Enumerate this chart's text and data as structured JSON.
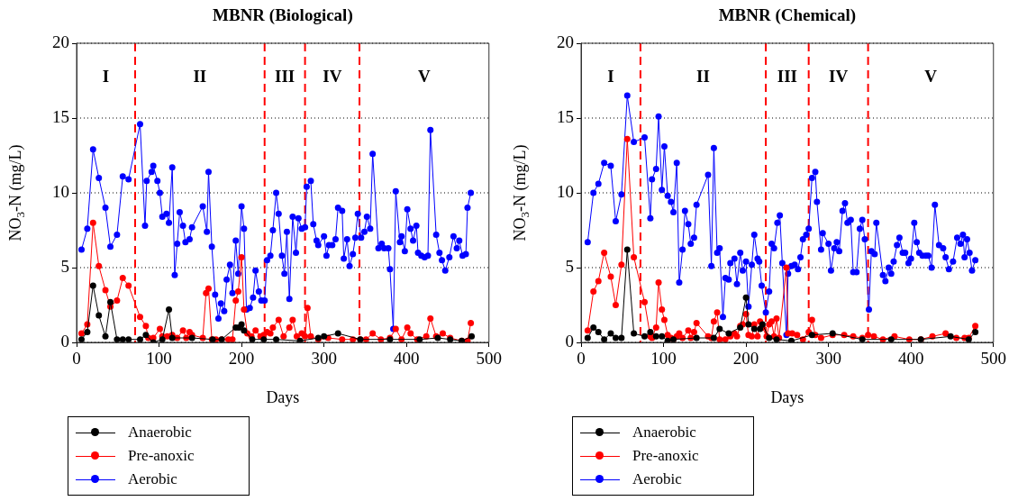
{
  "chart_data": [
    {
      "type": "line",
      "title": "MBNR (Biological)",
      "xlabel": "Days",
      "ylabel": "NO$_{3}$-N (mg/L)",
      "xlim": [
        0,
        500
      ],
      "ylim": [
        0,
        20
      ],
      "xticks": [
        0,
        100,
        200,
        300,
        400,
        500
      ],
      "yticks": [
        0,
        5,
        10,
        15,
        20
      ],
      "grid": "y",
      "legend": "bottom",
      "marker": "circle",
      "series": [
        {
          "name": "Anaerobic",
          "color": "#000000",
          "x": [
            6,
            13,
            20,
            27,
            35,
            41,
            49,
            56,
            63,
            77,
            84,
            93,
            104,
            112,
            116,
            140,
            165,
            176,
            193,
            197,
            200,
            203,
            213,
            227,
            242,
            271,
            293,
            300,
            317,
            344,
            380,
            416,
            438,
            453,
            467,
            479
          ],
          "values": [
            0.2,
            0.7,
            3.8,
            1.8,
            0.4,
            2.7,
            0.2,
            0.2,
            0.2,
            0.2,
            0.5,
            0.0,
            0.2,
            2.2,
            0.3,
            0.3,
            0.2,
            0.2,
            1.0,
            1.0,
            1.2,
            0.8,
            0.2,
            0.2,
            0.2,
            0.1,
            0.3,
            0.4,
            0.6,
            0.2,
            0.2,
            0.2,
            0.3,
            0.2,
            0.1,
            0.4
          ]
        },
        {
          "name": "Pre-anoxic",
          "color": "#ff0000",
          "x": [
            6,
            13,
            20,
            27,
            35,
            41,
            49,
            56,
            63,
            77,
            84,
            87,
            93,
            101,
            104,
            110,
            116,
            122,
            129,
            133,
            137,
            140,
            153,
            157,
            160,
            164,
            169,
            176,
            184,
            189,
            193,
            196,
            200,
            203,
            207,
            212,
            217,
            223,
            227,
            231,
            235,
            238,
            245,
            251,
            258,
            262,
            267,
            273,
            277,
            280,
            284,
            293,
            305,
            322,
            335,
            344,
            351,
            359,
            369,
            380,
            387,
            394,
            401,
            405,
            413,
            424,
            429,
            436,
            444,
            453,
            467,
            474,
            478
          ],
          "values": [
            0.6,
            1.2,
            8.0,
            5.1,
            3.5,
            2.4,
            2.8,
            4.3,
            3.8,
            1.7,
            1.1,
            0.3,
            0.3,
            0.9,
            0.4,
            0.4,
            0.5,
            0.3,
            0.8,
            0.3,
            0.7,
            0.5,
            0.3,
            3.3,
            3.6,
            0.2,
            0.2,
            0.2,
            0.2,
            0.2,
            2.8,
            3.4,
            5.7,
            2.2,
            0.6,
            0.4,
            0.8,
            0.4,
            0.5,
            0.7,
            0.6,
            1.0,
            1.5,
            0.4,
            1.0,
            1.5,
            0.4,
            0.6,
            0.4,
            2.3,
            0.4,
            0.2,
            0.3,
            0.2,
            0.2,
            0.2,
            0.2,
            0.6,
            0.2,
            0.3,
            0.9,
            0.2,
            1.0,
            0.6,
            0.2,
            0.4,
            1.6,
            0.4,
            0.6,
            0.3,
            0.1,
            0.1,
            1.3
          ]
        },
        {
          "name": "Aerobic",
          "color": "#0000ff",
          "x": [
            6,
            13,
            20,
            27,
            35,
            41,
            49,
            56,
            63,
            77,
            83,
            85,
            91,
            93,
            98,
            101,
            104,
            109,
            112,
            116,
            119,
            122,
            125,
            129,
            132,
            137,
            140,
            153,
            158,
            160,
            164,
            168,
            172,
            175,
            179,
            182,
            186,
            189,
            193,
            196,
            200,
            203,
            206,
            210,
            214,
            217,
            221,
            224,
            228,
            231,
            235,
            238,
            242,
            245,
            249,
            252,
            255,
            258,
            262,
            266,
            269,
            273,
            277,
            279,
            284,
            287,
            291,
            293,
            300,
            303,
            306,
            310,
            314,
            317,
            322,
            324,
            328,
            331,
            335,
            338,
            341,
            345,
            349,
            352,
            356,
            359,
            366,
            370,
            373,
            378,
            380,
            384,
            387,
            392,
            394,
            398,
            401,
            405,
            408,
            412,
            414,
            418,
            422,
            426,
            429,
            436,
            440,
            443,
            447,
            452,
            457,
            461,
            464,
            468,
            472,
            474,
            478
          ],
          "values": [
            6.2,
            7.6,
            12.9,
            11.0,
            9.0,
            6.4,
            7.2,
            11.1,
            10.9,
            14.6,
            7.8,
            10.8,
            11.4,
            11.8,
            10.8,
            10.0,
            8.4,
            8.6,
            8.0,
            11.7,
            4.5,
            6.6,
            8.7,
            7.8,
            6.7,
            6.9,
            7.7,
            9.1,
            7.4,
            11.4,
            6.4,
            3.2,
            1.6,
            2.6,
            2.1,
            4.2,
            5.2,
            3.3,
            6.8,
            4.6,
            9.1,
            7.6,
            2.2,
            2.3,
            3.0,
            4.8,
            3.4,
            2.8,
            2.8,
            5.5,
            5.8,
            7.5,
            10.0,
            8.6,
            5.8,
            4.6,
            7.4,
            2.9,
            8.4,
            6.0,
            8.3,
            7.6,
            7.7,
            10.4,
            10.8,
            7.9,
            6.8,
            6.5,
            7.1,
            5.8,
            6.5,
            6.5,
            6.9,
            9.0,
            8.8,
            5.6,
            6.9,
            5.1,
            5.9,
            7.0,
            8.6,
            7.0,
            7.4,
            8.4,
            7.6,
            12.6,
            6.3,
            6.6,
            6.3,
            6.3,
            4.9,
            0.9,
            10.1,
            6.7,
            7.1,
            6.1,
            8.9,
            7.6,
            6.8,
            7.8,
            6.0,
            5.8,
            5.7,
            5.8,
            14.2,
            7.2,
            6.0,
            5.5,
            4.8,
            5.7,
            7.1,
            6.3,
            6.8,
            5.8,
            5.9,
            9.0,
            10.0
          ]
        }
      ],
      "ref_lines": [
        {
          "axis": "x",
          "value": 71,
          "color": "#ff0000",
          "line_style": "dashed"
        },
        {
          "axis": "x",
          "value": 228,
          "color": "#ff0000",
          "line_style": "dashed"
        },
        {
          "axis": "x",
          "value": 277,
          "color": "#ff0000",
          "line_style": "dashed"
        },
        {
          "axis": "x",
          "value": 343,
          "color": "#ff0000",
          "line_style": "dashed"
        }
      ],
      "annotations": [
        "I",
        "II",
        "III",
        "IV",
        "V"
      ]
    },
    {
      "type": "line",
      "title": "MBNR (Chemical)",
      "xlabel": "Days",
      "ylabel": "NO$_{3}$-N (mg/L)",
      "xlim": [
        0,
        500
      ],
      "ylim": [
        0,
        20
      ],
      "xticks": [
        0,
        100,
        200,
        300,
        400,
        500
      ],
      "yticks": [
        0,
        5,
        10,
        15,
        20
      ],
      "grid": "y",
      "legend": "bottom",
      "marker": "circle",
      "series": [
        {
          "name": "Anaerobic",
          "color": "#000000",
          "x": [
            8,
            15,
            21,
            28,
            36,
            42,
            49,
            56,
            64,
            77,
            84,
            91,
            98,
            105,
            112,
            140,
            161,
            168,
            179,
            193,
            200,
            203,
            210,
            217,
            220,
            228,
            237,
            255,
            280,
            305,
            341,
            376,
            412,
            448,
            470,
            478
          ],
          "values": [
            0.3,
            1.0,
            0.7,
            0.2,
            0.6,
            0.3,
            0.3,
            6.2,
            0.6,
            0.4,
            0.7,
            0.4,
            0.4,
            0.1,
            0.2,
            0.3,
            0.3,
            0.9,
            0.6,
            1.0,
            3.0,
            1.2,
            0.9,
            0.9,
            1.2,
            0.3,
            0.2,
            0.1,
            0.5,
            0.6,
            0.2,
            0.2,
            0.2,
            0.4,
            0.2,
            0.7
          ]
        },
        {
          "name": "Pre-anoxic",
          "color": "#ff0000",
          "x": [
            8,
            15,
            21,
            28,
            36,
            42,
            49,
            56,
            64,
            77,
            84,
            86,
            91,
            94,
            98,
            101,
            105,
            109,
            112,
            116,
            119,
            123,
            130,
            133,
            137,
            140,
            154,
            158,
            161,
            165,
            168,
            175,
            181,
            186,
            189,
            193,
            196,
            200,
            203,
            207,
            210,
            214,
            217,
            220,
            225,
            228,
            231,
            234,
            237,
            240,
            249,
            251,
            256,
            262,
            269,
            276,
            280,
            284,
            291,
            305,
            319,
            330,
            341,
            348,
            355,
            366,
            380,
            398,
            412,
            426,
            442,
            455,
            465,
            470,
            478
          ],
          "values": [
            0.8,
            3.4,
            4.1,
            6.0,
            4.4,
            2.5,
            5.2,
            13.6,
            5.7,
            2.7,
            0.4,
            0.3,
            1.0,
            4.0,
            2.2,
            1.5,
            0.5,
            0.3,
            0.2,
            0.4,
            0.6,
            0.3,
            0.8,
            0.3,
            0.7,
            1.3,
            0.4,
            0.3,
            1.4,
            2.0,
            0.2,
            0.2,
            0.4,
            0.6,
            0.4,
            1.1,
            1.2,
            1.9,
            0.5,
            0.4,
            1.2,
            0.4,
            1.4,
            1.0,
            0.4,
            1.2,
            1.4,
            0.4,
            1.6,
            0.3,
            5.0,
            0.6,
            0.6,
            0.5,
            0.2,
            0.7,
            1.5,
            0.5,
            0.3,
            0.5,
            0.5,
            0.4,
            0.3,
            0.5,
            0.4,
            0.2,
            0.4,
            0.2,
            0.2,
            0.4,
            0.6,
            0.3,
            0.3,
            0.3,
            1.1
          ]
        },
        {
          "name": "Aerobic",
          "color": "#0000ff",
          "x": [
            8,
            15,
            21,
            28,
            36,
            42,
            49,
            56,
            64,
            77,
            84,
            86,
            91,
            94,
            98,
            101,
            105,
            109,
            112,
            116,
            119,
            123,
            126,
            130,
            133,
            137,
            140,
            154,
            158,
            161,
            165,
            168,
            172,
            175,
            179,
            181,
            186,
            189,
            193,
            196,
            200,
            203,
            207,
            210,
            214,
            216,
            219,
            224,
            228,
            231,
            234,
            238,
            241,
            244,
            249,
            251,
            255,
            259,
            263,
            266,
            269,
            273,
            276,
            280,
            284,
            286,
            291,
            293,
            300,
            303,
            307,
            310,
            313,
            317,
            320,
            323,
            327,
            330,
            334,
            338,
            341,
            344,
            349,
            352,
            356,
            358,
            366,
            369,
            373,
            376,
            379,
            383,
            386,
            390,
            393,
            397,
            400,
            404,
            407,
            410,
            414,
            418,
            421,
            425,
            429,
            434,
            439,
            442,
            446,
            451,
            456,
            460,
            463,
            465,
            468,
            471,
            474,
            478
          ],
          "values": [
            6.7,
            10.0,
            10.6,
            12.0,
            11.8,
            8.1,
            9.9,
            16.5,
            13.4,
            13.7,
            8.3,
            10.9,
            11.6,
            15.1,
            10.2,
            13.1,
            9.8,
            9.4,
            8.7,
            12.0,
            4.0,
            6.2,
            8.8,
            7.9,
            6.6,
            7.0,
            9.2,
            11.2,
            5.1,
            13.0,
            6.0,
            6.3,
            1.7,
            4.3,
            4.2,
            5.3,
            5.6,
            3.9,
            6.0,
            4.8,
            5.4,
            2.4,
            5.2,
            7.2,
            5.6,
            5.4,
            3.8,
            2.0,
            3.4,
            6.6,
            6.3,
            8.0,
            8.5,
            5.3,
            0.5,
            4.6,
            5.1,
            5.2,
            4.9,
            5.7,
            6.9,
            7.2,
            7.6,
            11.0,
            11.4,
            9.4,
            6.2,
            7.3,
            6.6,
            4.8,
            6.3,
            6.7,
            6.1,
            8.8,
            9.3,
            8.0,
            8.2,
            4.7,
            4.7,
            7.6,
            8.2,
            6.9,
            2.2,
            6.1,
            5.9,
            8.0,
            4.5,
            4.1,
            5.0,
            4.6,
            5.4,
            6.5,
            7.0,
            6.0,
            6.0,
            5.3,
            5.6,
            8.0,
            6.7,
            6.0,
            5.8,
            5.8,
            5.8,
            5.0,
            9.2,
            6.5,
            6.3,
            5.7,
            4.9,
            5.4,
            7.0,
            6.6,
            7.2,
            5.7,
            6.9,
            6.0,
            4.8,
            5.5
          ]
        }
      ],
      "ref_lines": [
        {
          "axis": "x",
          "value": 72,
          "color": "#ff0000",
          "line_style": "dashed"
        },
        {
          "axis": "x",
          "value": 224,
          "color": "#ff0000",
          "line_style": "dashed"
        },
        {
          "axis": "x",
          "value": 276,
          "color": "#ff0000",
          "line_style": "dashed"
        },
        {
          "axis": "x",
          "value": 348,
          "color": "#ff0000",
          "line_style": "dashed"
        }
      ],
      "annotations": [
        "I",
        "II",
        "III",
        "IV",
        "V"
      ]
    }
  ]
}
